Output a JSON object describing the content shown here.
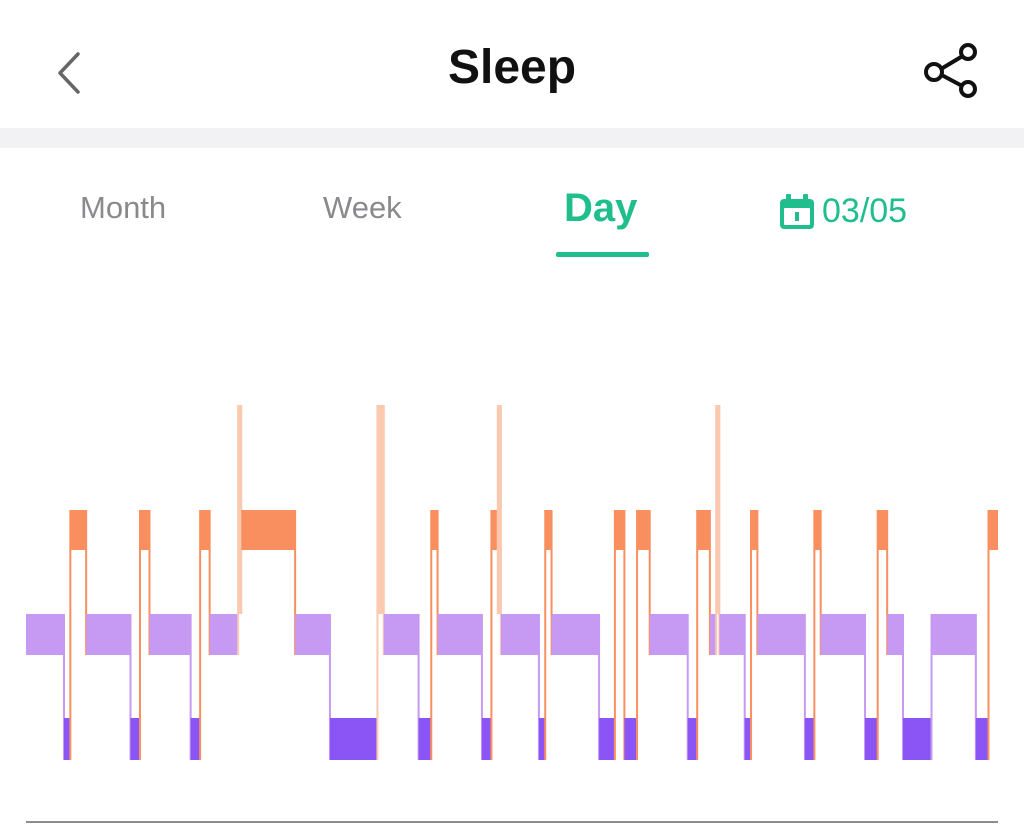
{
  "header": {
    "title": "Sleep",
    "back_icon": "chevron-left-icon",
    "share_icon": "share-icon"
  },
  "tabs": [
    {
      "label": "Month",
      "active": false
    },
    {
      "label": "Week",
      "active": false
    },
    {
      "label": "Day",
      "active": true
    }
  ],
  "date_picker": {
    "icon": "calendar-icon",
    "label": "03/05"
  },
  "colors": {
    "accent": "#20be8c",
    "awake": "#fbc8b0",
    "rem": "#f98f5e",
    "light": "#c69af2",
    "deep": "#8b55f5"
  },
  "chart_data": {
    "type": "hypnogram",
    "levels": [
      "awake",
      "rem",
      "light",
      "deep"
    ],
    "segments": [
      {
        "stage": "light",
        "duration": 12
      },
      {
        "stage": "deep",
        "duration": 2
      },
      {
        "stage": "rem",
        "duration": 5
      },
      {
        "stage": "light",
        "duration": 14
      },
      {
        "stage": "deep",
        "duration": 3
      },
      {
        "stage": "rem",
        "duration": 3
      },
      {
        "stage": "light",
        "duration": 13
      },
      {
        "stage": "deep",
        "duration": 3
      },
      {
        "stage": "rem",
        "duration": 3
      },
      {
        "stage": "light",
        "duration": 9
      },
      {
        "stage": "awake",
        "duration": 1
      },
      {
        "stage": "rem",
        "duration": 17
      },
      {
        "stage": "light",
        "duration": 11
      },
      {
        "stage": "deep",
        "duration": 15
      },
      {
        "stage": "awake",
        "duration": 2
      },
      {
        "stage": "light",
        "duration": 11
      },
      {
        "stage": "deep",
        "duration": 4
      },
      {
        "stage": "rem",
        "duration": 2
      },
      {
        "stage": "light",
        "duration": 14
      },
      {
        "stage": "deep",
        "duration": 3
      },
      {
        "stage": "rem",
        "duration": 2
      },
      {
        "stage": "awake",
        "duration": 1
      },
      {
        "stage": "light",
        "duration": 12
      },
      {
        "stage": "deep",
        "duration": 2
      },
      {
        "stage": "rem",
        "duration": 2
      },
      {
        "stage": "light",
        "duration": 15
      },
      {
        "stage": "deep",
        "duration": 5
      },
      {
        "stage": "rem",
        "duration": 3
      },
      {
        "stage": "deep",
        "duration": 4
      },
      {
        "stage": "rem",
        "duration": 4
      },
      {
        "stage": "light",
        "duration": 12
      },
      {
        "stage": "deep",
        "duration": 3
      },
      {
        "stage": "rem",
        "duration": 4
      },
      {
        "stage": "light",
        "duration": 2
      },
      {
        "stage": "awake",
        "duration": 1
      },
      {
        "stage": "light",
        "duration": 8
      },
      {
        "stage": "deep",
        "duration": 2
      },
      {
        "stage": "rem",
        "duration": 2
      },
      {
        "stage": "light",
        "duration": 15
      },
      {
        "stage": "deep",
        "duration": 3
      },
      {
        "stage": "rem",
        "duration": 2
      },
      {
        "stage": "light",
        "duration": 14
      },
      {
        "stage": "deep",
        "duration": 4
      },
      {
        "stage": "rem",
        "duration": 3
      },
      {
        "stage": "light",
        "duration": 5
      },
      {
        "stage": "deep",
        "duration": 9
      },
      {
        "stage": "light",
        "duration": 14
      },
      {
        "stage": "deep",
        "duration": 4
      },
      {
        "stage": "rem",
        "duration": 3
      }
    ]
  }
}
